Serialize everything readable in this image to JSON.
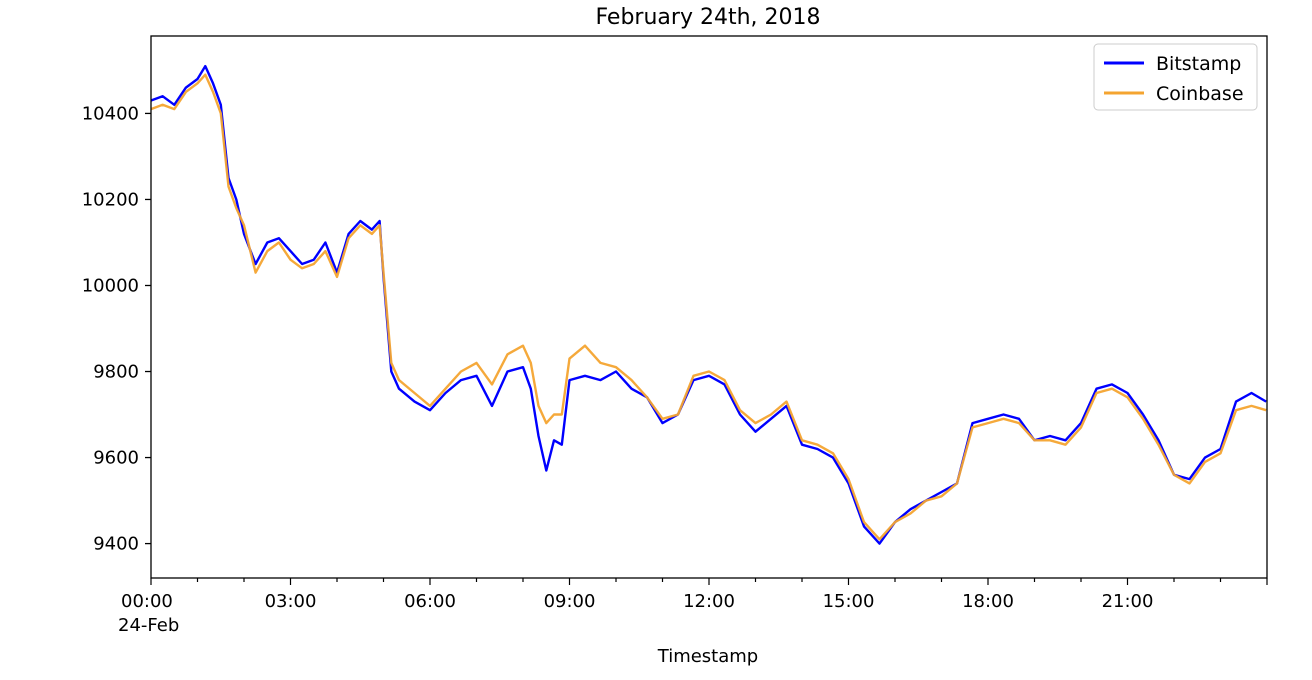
{
  "chart_data": {
    "type": "line",
    "title": "February 24th, 2018",
    "xlabel": "Timestamp",
    "ylabel": "",
    "x_tick_labels": [
      "00:00",
      "03:00",
      "06:00",
      "09:00",
      "12:00",
      "15:00",
      "18:00",
      "21:00"
    ],
    "x_tick_sublabel": "24-Feb",
    "y_ticks": [
      9400,
      9600,
      9800,
      10000,
      10200,
      10400
    ],
    "xlim": [
      "00:00",
      "24:00"
    ],
    "ylim": [
      9320,
      10580
    ],
    "grid": false,
    "legend_position": "top-right",
    "x": [
      "00:00",
      "00:15",
      "00:30",
      "00:45",
      "01:00",
      "01:10",
      "01:20",
      "01:30",
      "01:40",
      "01:50",
      "02:00",
      "02:15",
      "02:30",
      "02:45",
      "03:00",
      "03:15",
      "03:30",
      "03:45",
      "04:00",
      "04:15",
      "04:30",
      "04:45",
      "04:55",
      "05:00",
      "05:10",
      "05:20",
      "05:40",
      "06:00",
      "06:20",
      "06:40",
      "07:00",
      "07:20",
      "07:40",
      "08:00",
      "08:10",
      "08:20",
      "08:30",
      "08:40",
      "08:50",
      "09:00",
      "09:20",
      "09:40",
      "10:00",
      "10:20",
      "10:40",
      "11:00",
      "11:20",
      "11:40",
      "12:00",
      "12:20",
      "12:40",
      "13:00",
      "13:20",
      "13:40",
      "14:00",
      "14:20",
      "14:40",
      "15:00",
      "15:20",
      "15:40",
      "16:00",
      "16:20",
      "16:40",
      "17:00",
      "17:20",
      "17:40",
      "18:00",
      "18:20",
      "18:40",
      "19:00",
      "19:20",
      "19:40",
      "20:00",
      "20:20",
      "20:40",
      "21:00",
      "21:20",
      "21:40",
      "22:00",
      "22:20",
      "22:40",
      "23:00",
      "23:20",
      "23:40",
      "23:59"
    ],
    "series": [
      {
        "name": "Bitstamp",
        "color": "#0000ff",
        "values": [
          10430,
          10440,
          10420,
          10460,
          10480,
          10510,
          10470,
          10420,
          10250,
          10200,
          10120,
          10050,
          10100,
          10110,
          10080,
          10050,
          10060,
          10100,
          10030,
          10120,
          10150,
          10130,
          10150,
          10020,
          9800,
          9760,
          9730,
          9710,
          9750,
          9780,
          9790,
          9720,
          9800,
          9810,
          9760,
          9650,
          9570,
          9640,
          9630,
          9780,
          9790,
          9780,
          9800,
          9760,
          9740,
          9680,
          9700,
          9780,
          9790,
          9770,
          9700,
          9660,
          9690,
          9720,
          9630,
          9620,
          9600,
          9540,
          9440,
          9400,
          9450,
          9480,
          9500,
          9520,
          9540,
          9680,
          9690,
          9700,
          9690,
          9640,
          9650,
          9640,
          9680,
          9760,
          9770,
          9750,
          9700,
          9640,
          9560,
          9550,
          9600,
          9620,
          9730,
          9750,
          9730
        ]
      },
      {
        "name": "Coinbase",
        "color": "#f4a430",
        "values": [
          10410,
          10420,
          10410,
          10450,
          10470,
          10490,
          10450,
          10400,
          10230,
          10180,
          10140,
          10030,
          10080,
          10100,
          10060,
          10040,
          10050,
          10080,
          10020,
          10110,
          10140,
          10120,
          10140,
          10030,
          9820,
          9780,
          9750,
          9720,
          9760,
          9800,
          9820,
          9770,
          9840,
          9860,
          9820,
          9720,
          9680,
          9700,
          9700,
          9830,
          9860,
          9820,
          9810,
          9780,
          9740,
          9690,
          9700,
          9790,
          9800,
          9780,
          9710,
          9680,
          9700,
          9730,
          9640,
          9630,
          9610,
          9550,
          9450,
          9410,
          9450,
          9470,
          9500,
          9510,
          9540,
          9670,
          9680,
          9690,
          9680,
          9640,
          9640,
          9630,
          9670,
          9750,
          9760,
          9740,
          9690,
          9630,
          9560,
          9540,
          9590,
          9610,
          9710,
          9720,
          9710
        ]
      }
    ]
  }
}
